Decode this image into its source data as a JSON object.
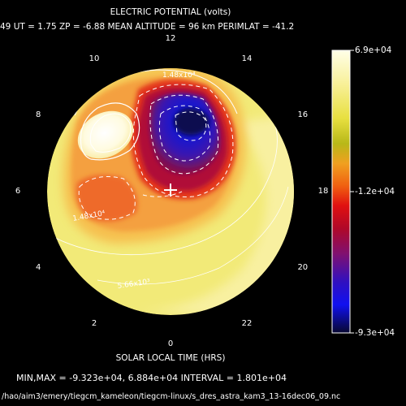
{
  "title": "ELECTRIC POTENTIAL (volts)",
  "info_line": "49   UT =   1.75   ZP =  -6.88   MEAN ALTITUDE =   96 km   PERIMLAT = -41.2",
  "xlabel": "SOLAR LOCAL TIME (HRS)",
  "minmax_line": "MIN,MAX = -9.323e+04, 6.884e+04 INTERVAL =   1.801e+04",
  "footer": "/hao/aim3/emery/tiegcm_kameleon/tiegcm-linux/s_dres_astra_kam3_13-16dec06_09.nc",
  "colors": {
    "background": "#000000",
    "dial_base": "#f2ea78",
    "orange": "#f4a040",
    "red": "#e83a1a",
    "dark_red": "#b01038",
    "purple": "#5a1898",
    "blue": "#1a1ae0",
    "navy": "#0a0a50",
    "white_peak": "#fffff0"
  },
  "chart_data": {
    "type": "heatmap",
    "projection": "polar dial",
    "title": "ELECTRIC POTENTIAL (volts)",
    "xlabel": "SOLAR LOCAL TIME (HRS)",
    "local_time_labels": [
      "0",
      "2",
      "4",
      "6",
      "8",
      "10",
      "12",
      "14",
      "16",
      "18",
      "20",
      "22"
    ],
    "ut": 1.75,
    "zp": -6.88,
    "mean_altitude_km": 96,
    "perimlat": -41.2,
    "min": -93230,
    "max": 68840,
    "contour_interval": 18010,
    "contour_labels": [
      "1.48x10⁴",
      "1.48x10⁴",
      "5.66x10³"
    ],
    "colorbar": {
      "max_label": "6.9e+04",
      "mid_label": "-1.2e+04",
      "min_label": "-9.3e+04",
      "max": 69000,
      "mid": -12000,
      "min": -93000
    }
  }
}
